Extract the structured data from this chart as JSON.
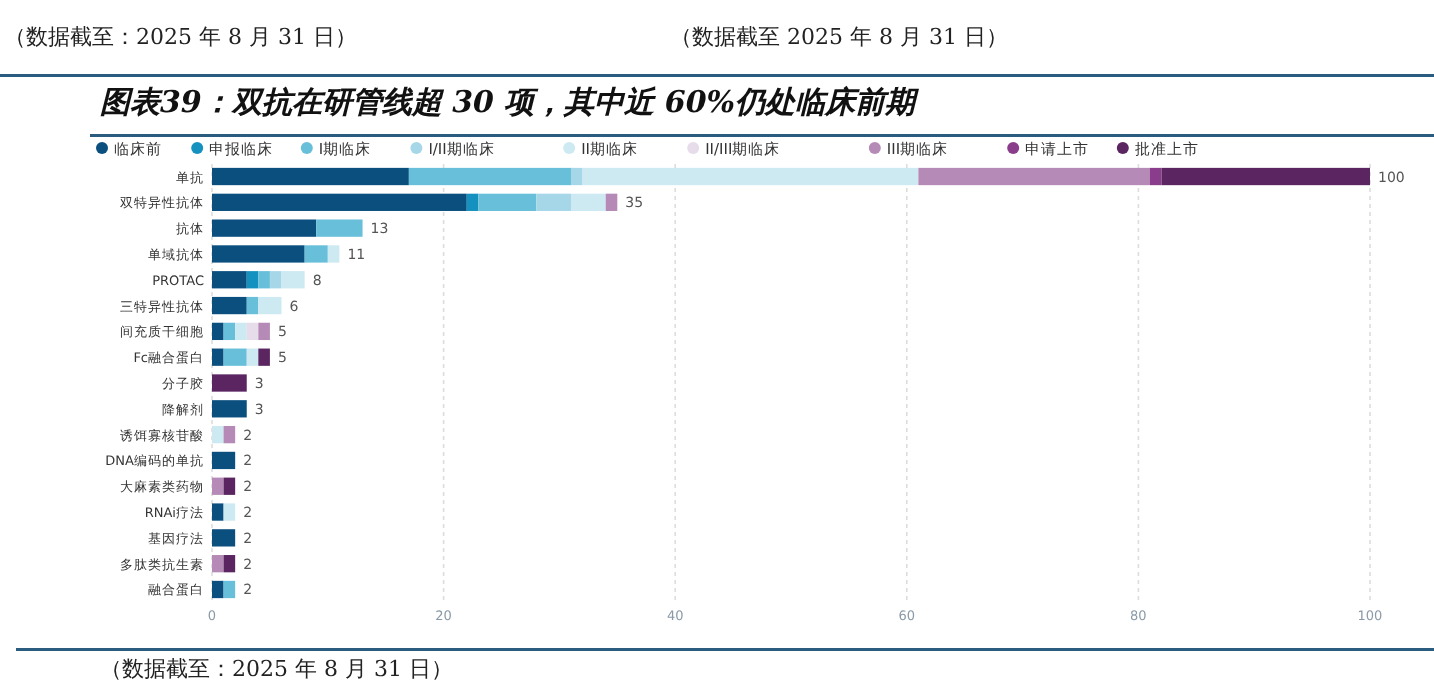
{
  "chart_data": {
    "type": "bar",
    "orientation": "horizontal",
    "stacked": true,
    "title": "图表39：双抗在研管线超 30 项，其中近 60%仍处临床前期",
    "annotations": [
      "（数据截至：2025 年 8 月 31 日）",
      "（数据截至 2025 年 8 月 31 日）",
      "（数据截至：2025 年 8 月 31 日）"
    ],
    "categories": [
      "单抗",
      "双特异性抗体",
      "抗体",
      "单域抗体",
      "PROTAC",
      "三特异性抗体",
      "间充质干细胞",
      "Fc融合蛋白",
      "分子胶",
      "降解剂",
      "诱饵寡核苷酸",
      "DNA编码的单抗",
      "大麻素类药物",
      "RNAi疗法",
      "基因疗法",
      "多肽类抗生素",
      "融合蛋白"
    ],
    "series": [
      {
        "name": "临床前",
        "color": "#0b4f7f",
        "values": [
          17,
          22,
          9,
          8,
          3,
          3,
          1,
          1,
          0,
          3,
          0,
          2,
          0,
          1,
          2,
          0,
          1
        ]
      },
      {
        "name": "申报临床",
        "color": "#1591c0",
        "values": [
          0,
          1,
          0,
          0,
          1,
          0,
          0,
          0,
          0,
          0,
          0,
          0,
          0,
          0,
          0,
          0,
          0
        ]
      },
      {
        "name": "I期临床",
        "color": "#68bfd9",
        "values": [
          14,
          5,
          4,
          2,
          1,
          1,
          1,
          2,
          0,
          0,
          0,
          0,
          0,
          0,
          0,
          0,
          1
        ]
      },
      {
        "name": "I/II期临床",
        "color": "#a6d7e8",
        "values": [
          1,
          3,
          0,
          0,
          1,
          0,
          0,
          0,
          0,
          0,
          0,
          0,
          0,
          0,
          0,
          0,
          0
        ]
      },
      {
        "name": "II期临床",
        "color": "#cde9f1",
        "values": [
          29,
          3,
          0,
          1,
          2,
          2,
          1,
          1,
          0,
          0,
          1,
          0,
          0,
          1,
          0,
          0,
          0
        ]
      },
      {
        "name": "II/III期临床",
        "color": "#e6dcea",
        "values": [
          0,
          0,
          0,
          0,
          0,
          0,
          1,
          0,
          0,
          0,
          0,
          0,
          0,
          0,
          0,
          0,
          0
        ]
      },
      {
        "name": "III期临床",
        "color": "#b58ab6",
        "values": [
          20,
          1,
          0,
          0,
          0,
          0,
          1,
          0,
          0,
          0,
          1,
          0,
          1,
          0,
          0,
          1,
          0
        ]
      },
      {
        "name": "申请上市",
        "color": "#8a3d8a",
        "values": [
          1,
          0,
          0,
          0,
          0,
          0,
          0,
          0,
          0,
          0,
          0,
          0,
          0,
          0,
          0,
          0,
          0
        ]
      },
      {
        "name": "批准上市",
        "color": "#5a2560",
        "values": [
          18,
          0,
          0,
          0,
          0,
          0,
          0,
          1,
          3,
          0,
          0,
          0,
          1,
          0,
          0,
          1,
          0
        ]
      }
    ],
    "totals": [
      "100",
      "35",
      "13",
      "11",
      "8",
      "6",
      "5",
      "5",
      "3",
      "3",
      "2",
      "2",
      "2",
      "2",
      "2",
      "2",
      "2"
    ],
    "xlim": [
      0,
      100
    ],
    "xticks": [
      0,
      20,
      40,
      60,
      80,
      100
    ],
    "grid": "x",
    "legend": "top left"
  }
}
